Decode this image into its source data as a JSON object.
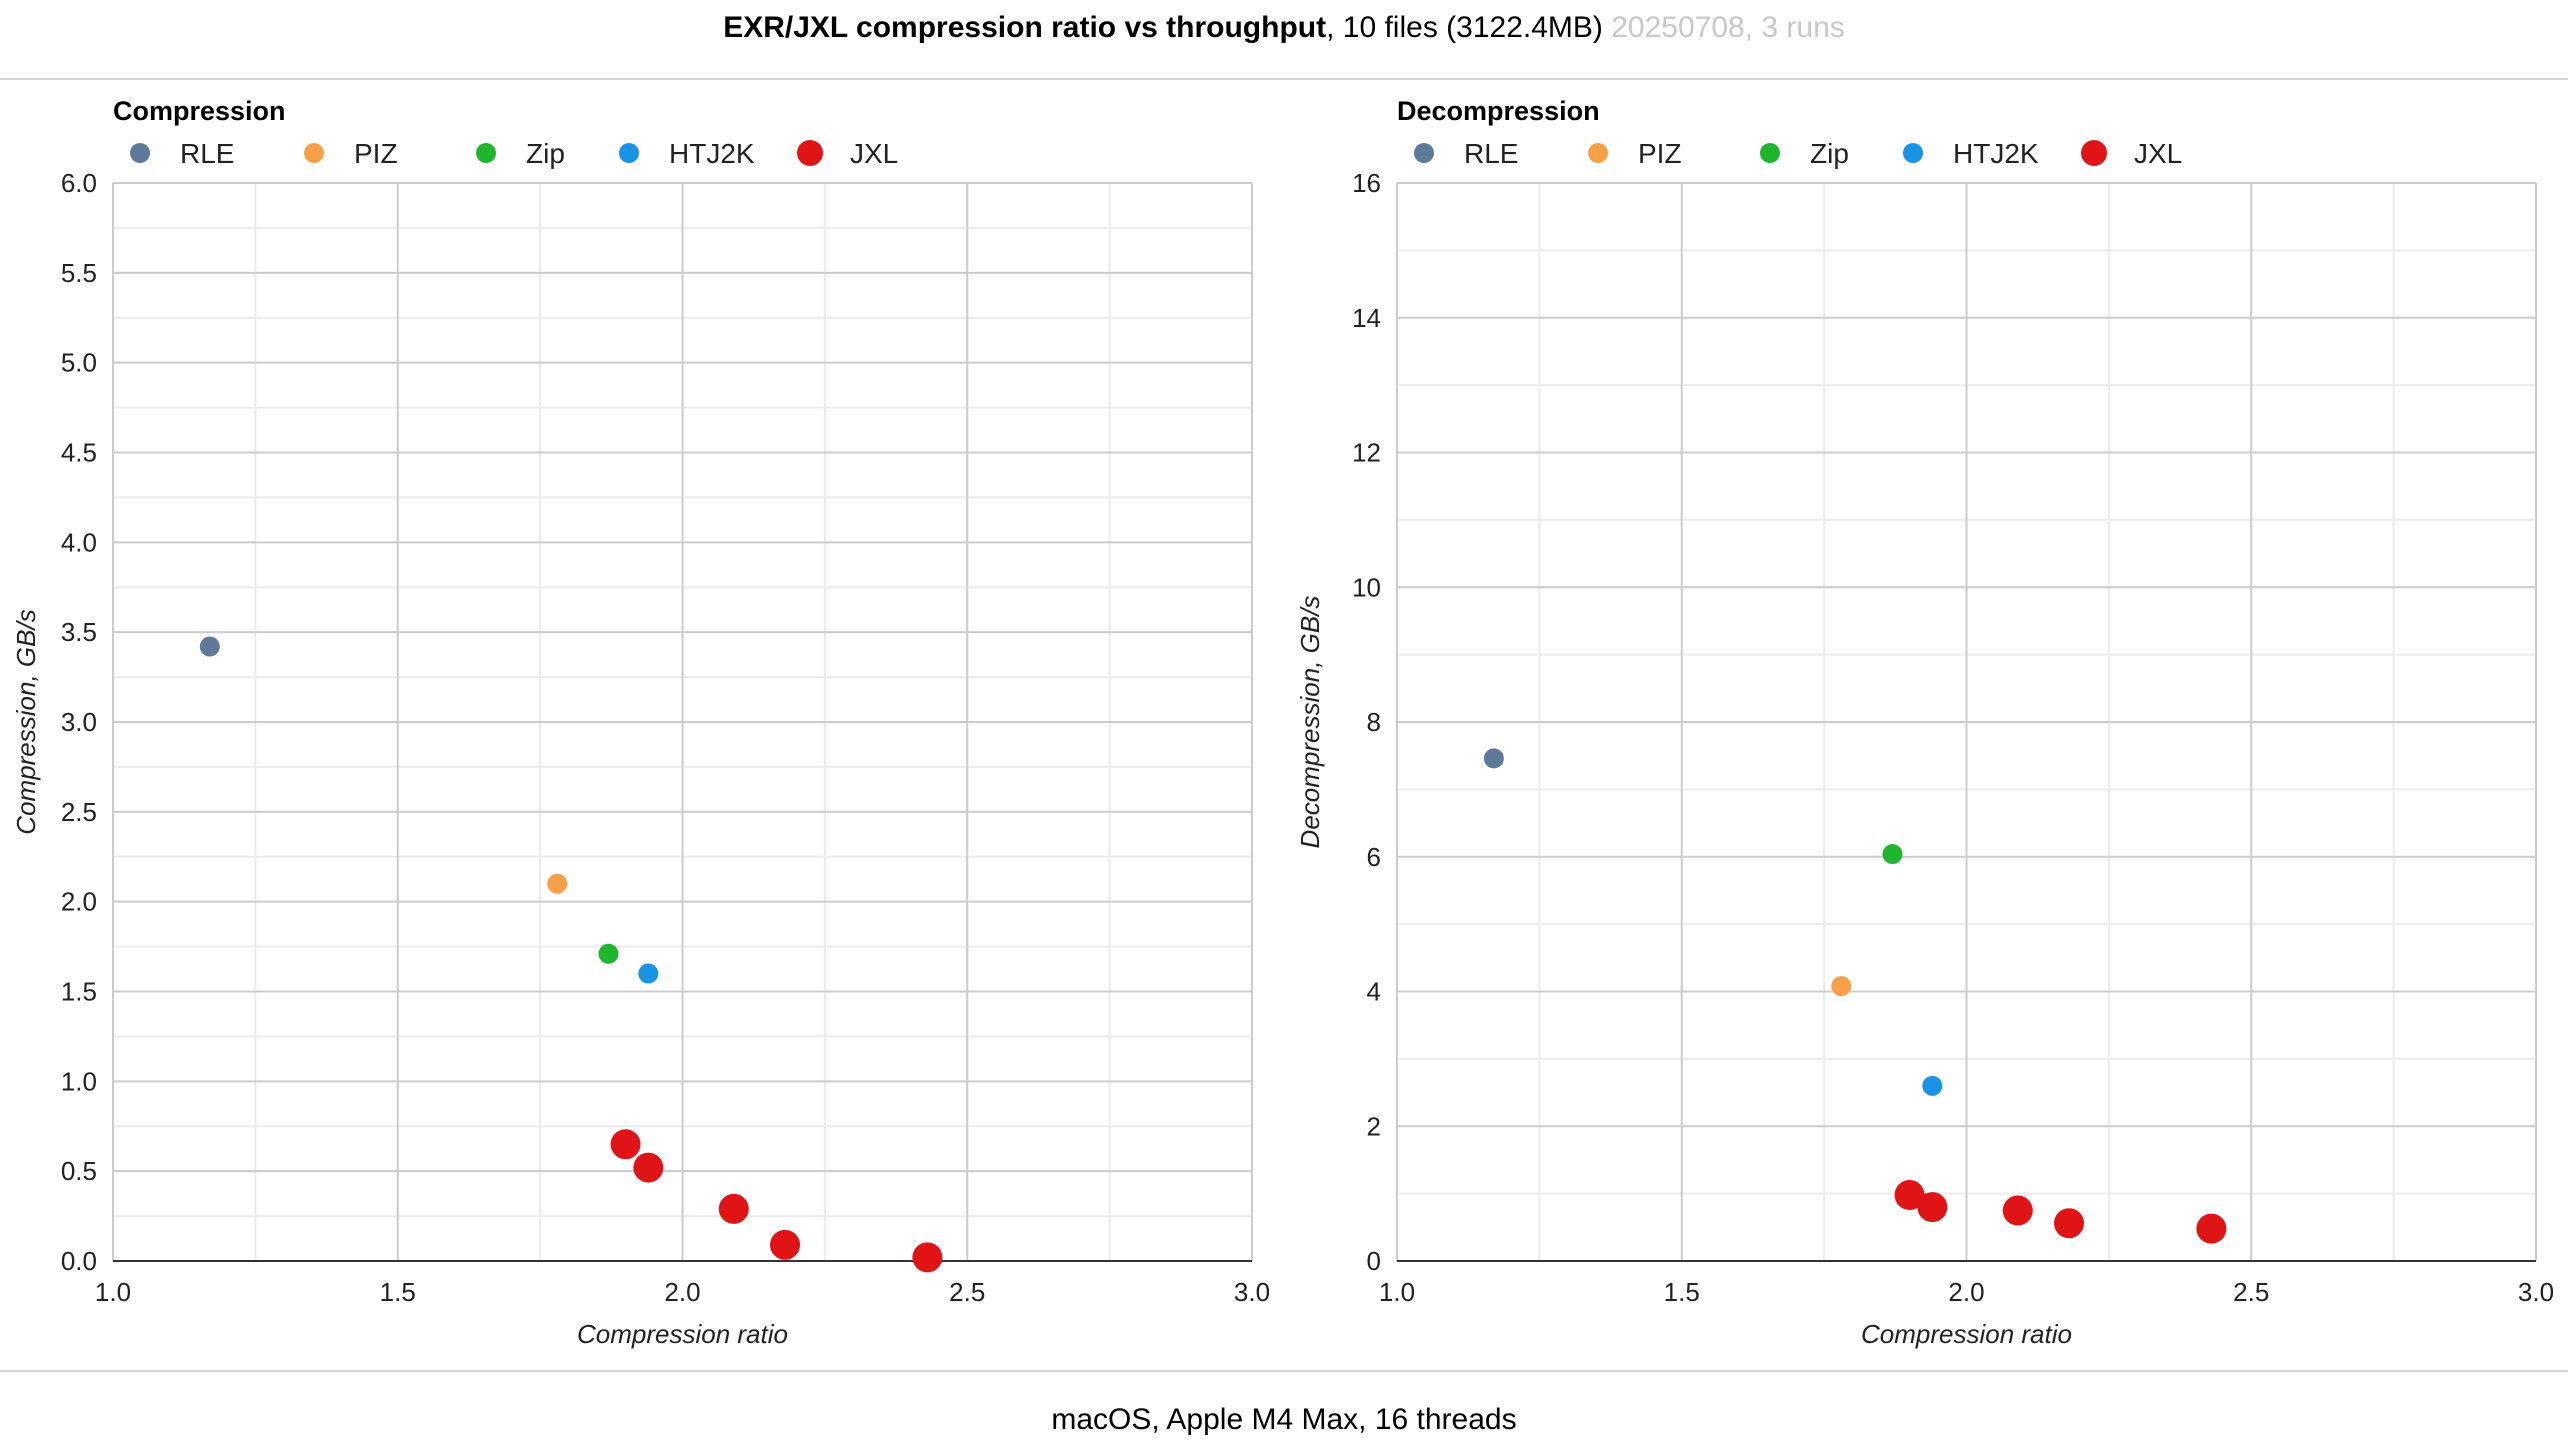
{
  "header": {
    "title_bold": "EXR/JXL compression ratio vs throughput",
    "title_rest": ", 10 files (3122.4MB) ",
    "title_muted": "20250708, 3 runs"
  },
  "footer": {
    "text": "macOS, Apple M4 Max, 16 threads"
  },
  "colors": {
    "RLE": "#5f7a99",
    "PIZ": "#f7a048",
    "Zip": "#1fb52f",
    "HTJ2K": "#1a93e6",
    "JXL": "#e01417"
  },
  "chart_data": [
    {
      "type": "scatter",
      "title": "Compression",
      "xlabel": "Compression ratio",
      "ylabel": "Compression, GB/s",
      "xlim": [
        1.0,
        3.0
      ],
      "ylim": [
        0.0,
        6.0
      ],
      "xticks": [
        "1.0",
        "1.5",
        "2.0",
        "2.5",
        "3.0"
      ],
      "yticks": [
        "0.0",
        "0.5",
        "1.0",
        "1.5",
        "2.0",
        "2.5",
        "3.0",
        "3.5",
        "4.0",
        "4.5",
        "5.0",
        "5.5",
        "6.0"
      ],
      "grid": true,
      "legend": "top-left",
      "series": [
        {
          "name": "RLE",
          "points": [
            [
              1.17,
              3.42
            ]
          ]
        },
        {
          "name": "PIZ",
          "points": [
            [
              1.78,
              2.1
            ]
          ]
        },
        {
          "name": "Zip",
          "points": [
            [
              1.87,
              1.71
            ]
          ]
        },
        {
          "name": "HTJ2K",
          "points": [
            [
              1.94,
              1.6
            ]
          ]
        },
        {
          "name": "JXL",
          "points": [
            [
              1.9,
              0.65
            ],
            [
              1.94,
              0.52
            ],
            [
              2.09,
              0.29
            ],
            [
              2.18,
              0.09
            ],
            [
              2.43,
              0.02
            ]
          ]
        }
      ]
    },
    {
      "type": "scatter",
      "title": "Decompression",
      "xlabel": "Compression ratio",
      "ylabel": "Decompression, GB/s",
      "xlim": [
        1.0,
        3.0
      ],
      "ylim": [
        0,
        16
      ],
      "xticks": [
        "1.0",
        "1.5",
        "2.0",
        "2.5",
        "3.0"
      ],
      "yticks": [
        "0",
        "2",
        "4",
        "6",
        "8",
        "10",
        "12",
        "14",
        "16"
      ],
      "grid": true,
      "legend": "top-left",
      "series": [
        {
          "name": "RLE",
          "points": [
            [
              1.17,
              7.46
            ]
          ]
        },
        {
          "name": "PIZ",
          "points": [
            [
              1.78,
              4.08
            ]
          ]
        },
        {
          "name": "Zip",
          "points": [
            [
              1.87,
              6.04
            ]
          ]
        },
        {
          "name": "HTJ2K",
          "points": [
            [
              1.94,
              2.6
            ]
          ]
        },
        {
          "name": "JXL",
          "points": [
            [
              1.9,
              0.98
            ],
            [
              1.94,
              0.8
            ],
            [
              2.09,
              0.75
            ],
            [
              2.18,
              0.56
            ],
            [
              2.43,
              0.48
            ]
          ]
        }
      ]
    }
  ]
}
